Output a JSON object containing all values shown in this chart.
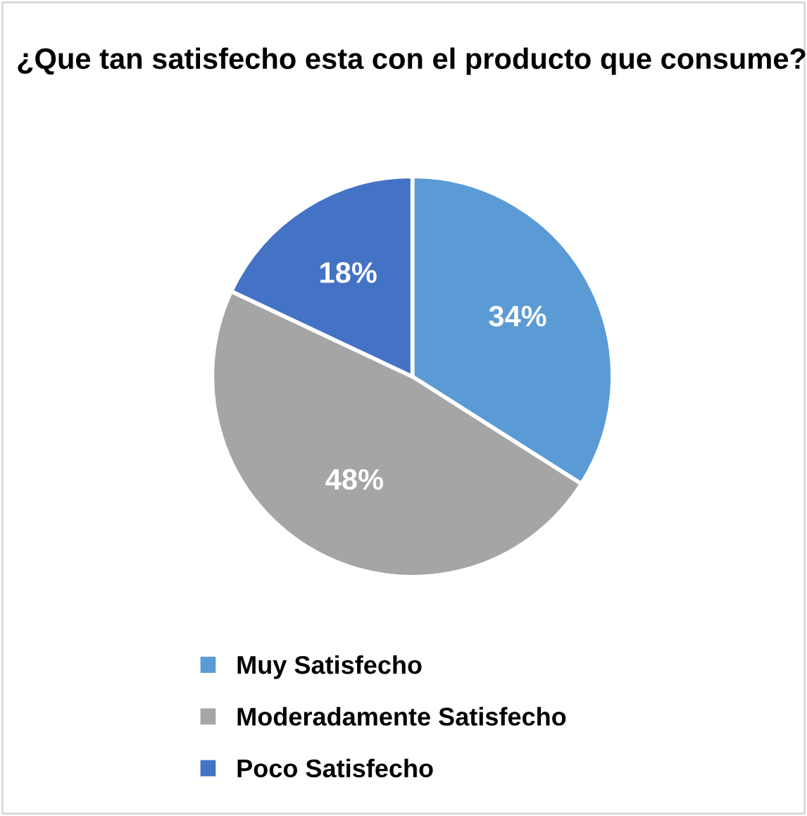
{
  "chart_data": {
    "type": "pie",
    "title": "¿Que tan satisfecho esta con el producto que consume?",
    "categories": [
      "Muy Satisfecho",
      "Moderadamente Satisfecho",
      "Poco Satisfecho"
    ],
    "values": [
      34,
      48,
      18
    ],
    "colors": [
      "#5b9bd5",
      "#a5a5a5",
      "#4472c4"
    ],
    "value_labels": [
      "34%",
      "48%",
      "18%"
    ],
    "legend": "bottom"
  }
}
